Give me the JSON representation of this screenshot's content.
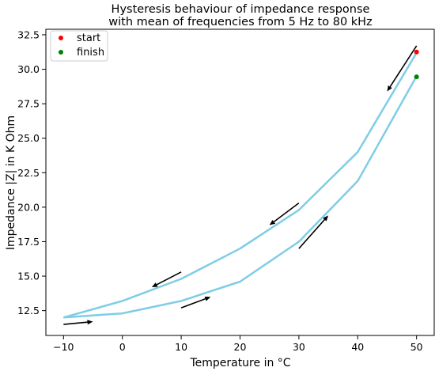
{
  "chart_data": {
    "type": "line",
    "title": [
      "Hysteresis behaviour of impedance response",
      "with mean of frequencies from 5 Hz to 80 kHz"
    ],
    "xlabel": "Temperature in °C",
    "ylabel": "Impedance |Z| in K Ohm",
    "xlim": [
      -13,
      53
    ],
    "ylim": [
      10.7,
      32.9
    ],
    "x_ticks": [
      -10,
      0,
      10,
      20,
      30,
      40,
      50
    ],
    "x_tick_labels": [
      "−10",
      "0",
      "10",
      "20",
      "30",
      "40",
      "50"
    ],
    "y_ticks": [
      12.5,
      15.0,
      17.5,
      20.0,
      22.5,
      25.0,
      27.5,
      30.0,
      32.5
    ],
    "y_tick_labels": [
      "12.5",
      "15.0",
      "17.5",
      "20.0",
      "22.5",
      "25.0",
      "27.5",
      "30.0",
      "32.5"
    ],
    "grid": false,
    "line_color": "#7ecde6",
    "arrow_color": "#000000",
    "series": [
      {
        "x": [
          -10,
          0,
          10,
          20,
          30,
          40,
          50
        ],
        "y": [
          12.0,
          12.3,
          13.2,
          14.6,
          17.5,
          21.9,
          29.5
        ]
      },
      {
        "x": [
          50,
          40,
          30,
          20,
          10,
          0,
          -10
        ],
        "y": [
          31.2,
          24.0,
          19.8,
          17.0,
          14.8,
          13.2,
          12.0
        ]
      }
    ],
    "markers": [
      {
        "label": "start",
        "x": 50,
        "y": 31.25,
        "color": "#ff0000"
      },
      {
        "label": "finish",
        "x": 50,
        "y": 29.45,
        "color": "#008000"
      }
    ],
    "arrows": [
      {
        "from": [
          -10,
          11.5
        ],
        "to": [
          -5,
          11.7
        ]
      },
      {
        "from": [
          10,
          12.7
        ],
        "to": [
          15,
          13.5
        ]
      },
      {
        "from": [
          30,
          17.0
        ],
        "to": [
          35,
          19.4
        ]
      },
      {
        "from": [
          10,
          15.3
        ],
        "to": [
          5,
          14.2
        ]
      },
      {
        "from": [
          30,
          20.3
        ],
        "to": [
          25,
          18.7
        ]
      },
      {
        "from": [
          50,
          31.7
        ],
        "to": [
          45,
          28.4
        ]
      }
    ],
    "legend": {
      "placement": "top-left",
      "entries": [
        {
          "label": "start",
          "color": "#ff0000"
        },
        {
          "label": "finish",
          "color": "#008000"
        }
      ]
    }
  }
}
